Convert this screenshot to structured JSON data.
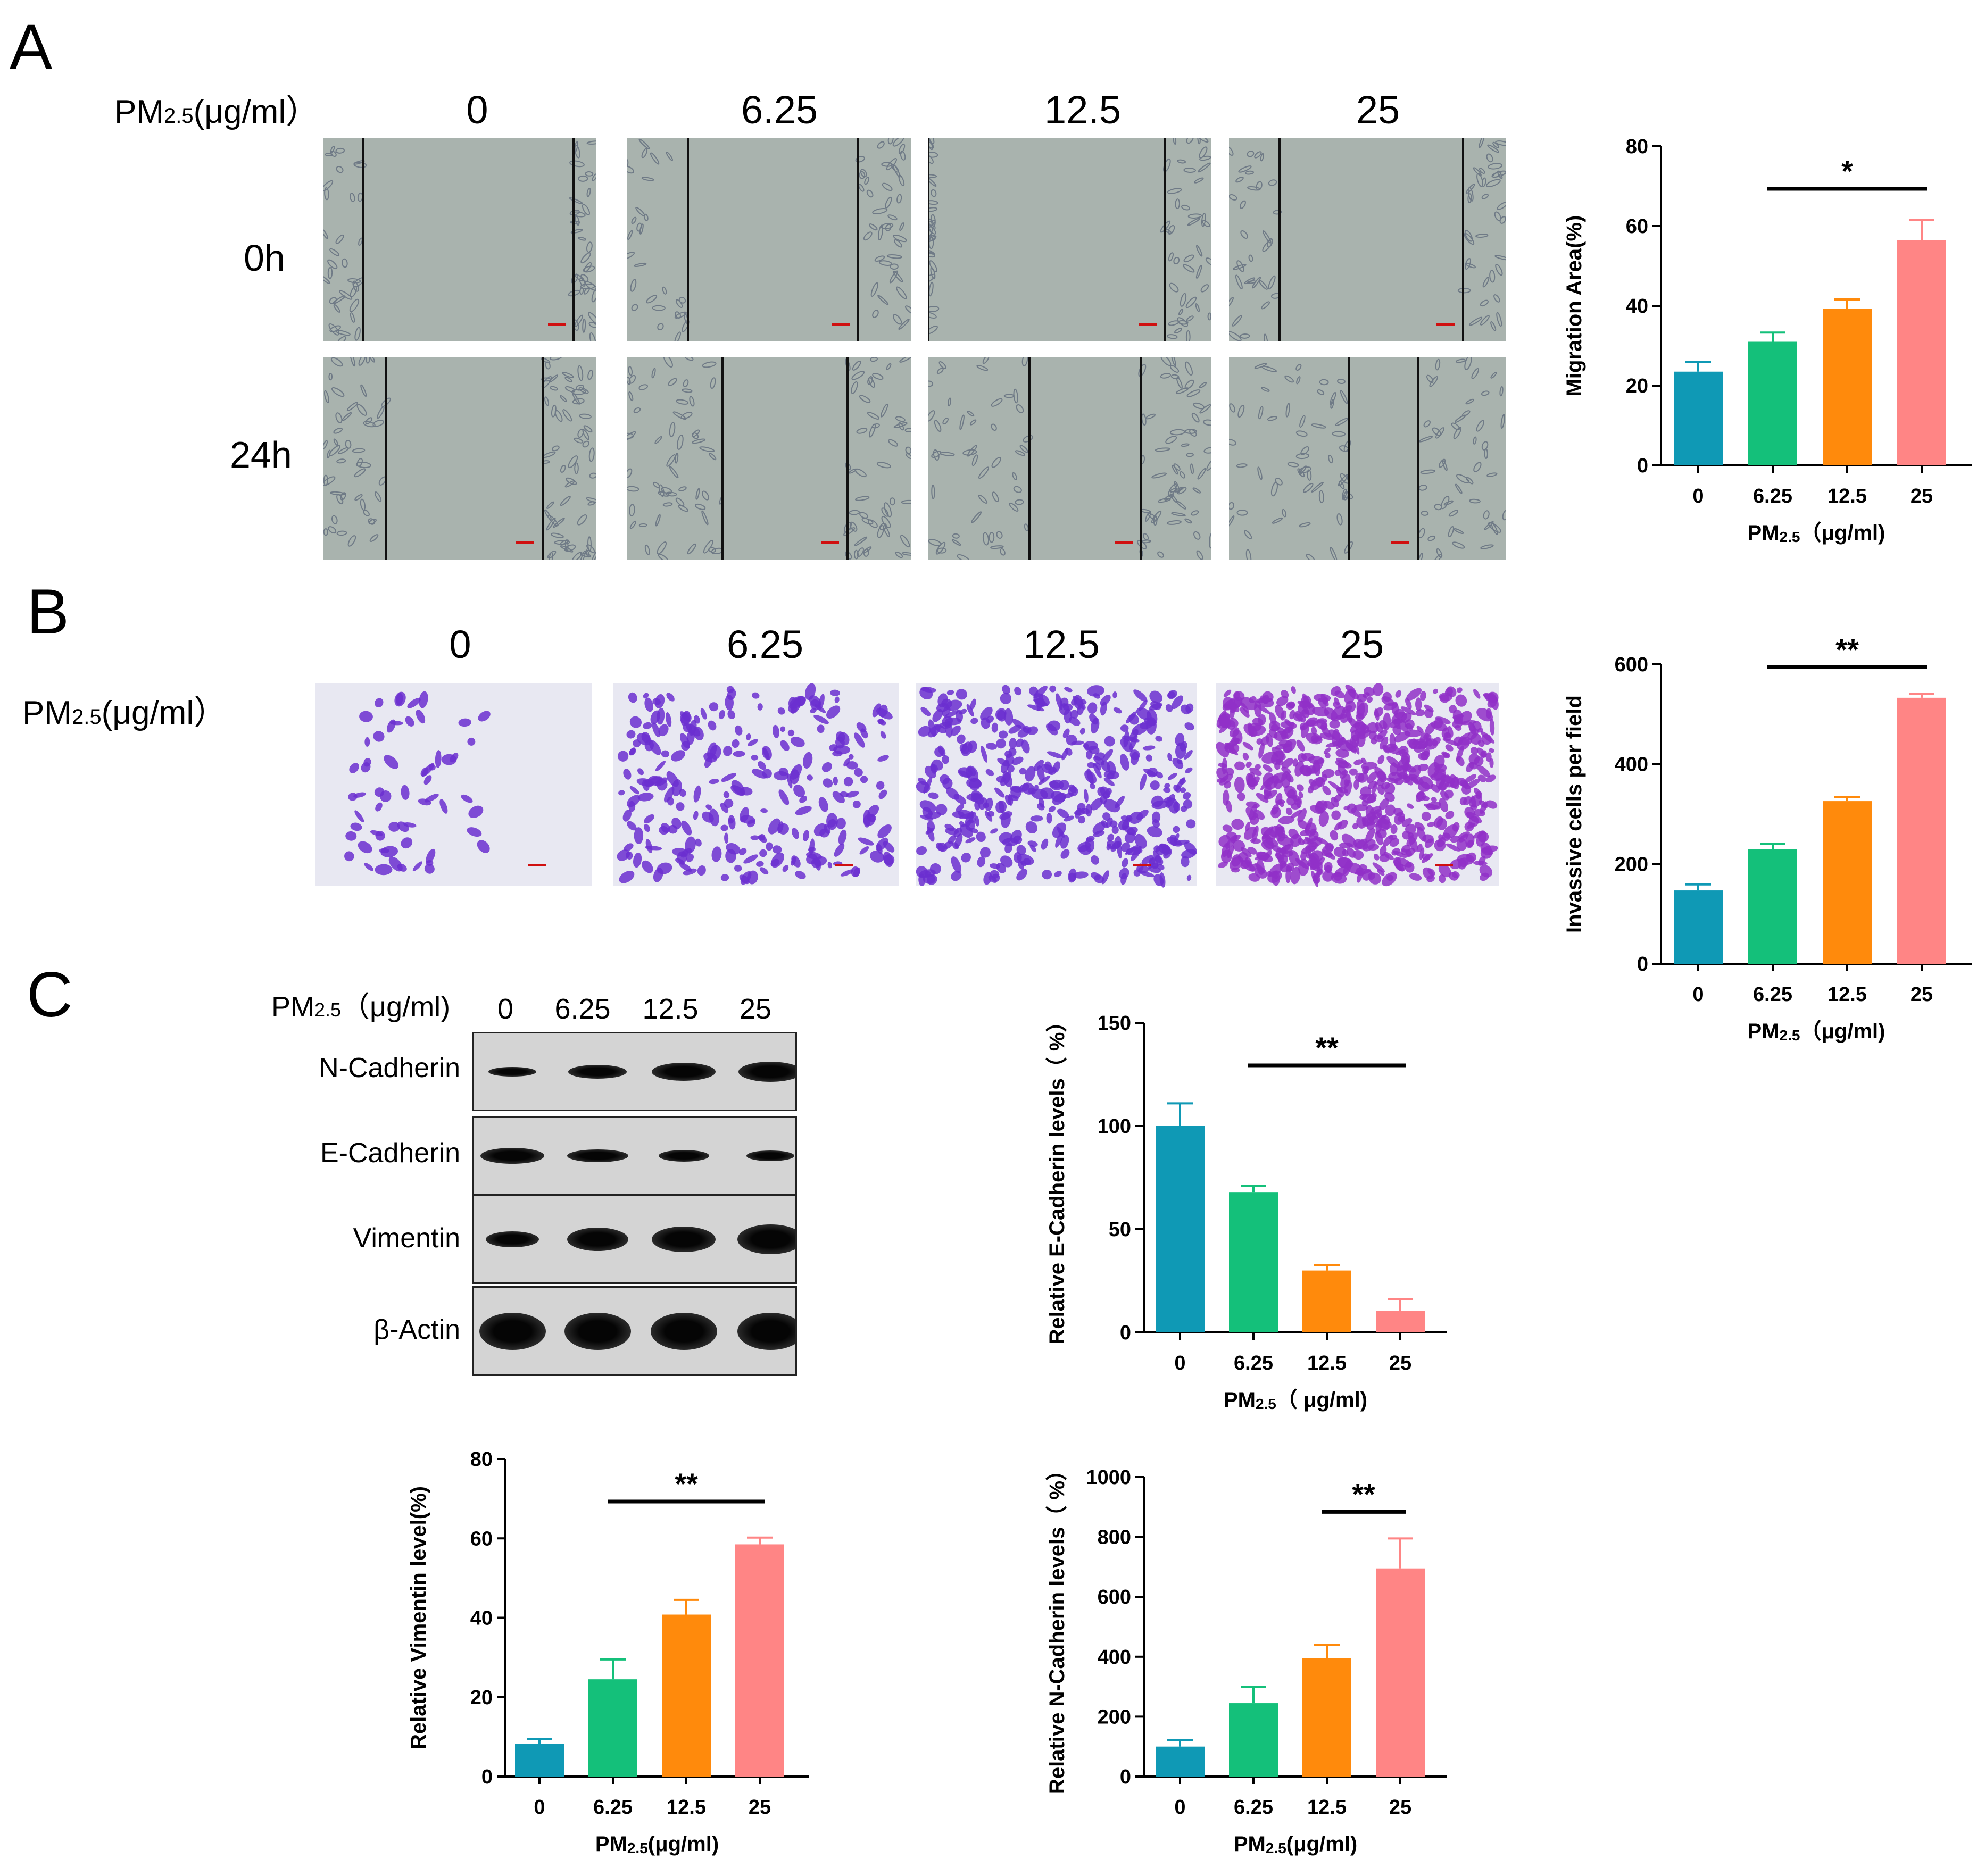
{
  "panels": {
    "a": {
      "letter": "A",
      "pm_label": "PM",
      "pm_sub": "2.5",
      "pm_unit": "(μg/ml）",
      "concentrations": [
        "0",
        "6.25",
        "12.5",
        "25"
      ],
      "times": [
        "0h",
        "24h"
      ]
    },
    "b": {
      "letter": "B",
      "pm_label": "PM",
      "pm_sub": "2.5",
      "pm_unit": "(μg/ml）",
      "concentrations": [
        "0",
        "6.25",
        "12.5",
        "25"
      ]
    },
    "c": {
      "letter": "C",
      "pm_label": "PM",
      "pm_sub": "2.5",
      "pm_unit": "（μg/ml)",
      "concentrations": [
        "0",
        "6.25",
        "12.5",
        "25"
      ],
      "blot_rows": [
        "N-Cadherin",
        "E-Cadherin",
        "Vimentin",
        "β-Actin"
      ]
    }
  },
  "colors": [
    "#0f99b5",
    "#14c07a",
    "#ff8a0c",
    "#ff8585"
  ],
  "chart_data": [
    {
      "id": "migration",
      "type": "bar",
      "categories": [
        "0",
        "6.25",
        "12.5",
        "25"
      ],
      "values": [
        23.5,
        31,
        39.3,
        56.5
      ],
      "errors": [
        2.5,
        2.3,
        2.3,
        5.0
      ],
      "ylabel": "Migration Area(%)",
      "xlabel_main": "PM",
      "xlabel_sub": "2.5",
      "xlabel_unit": "（μg/ml)",
      "ylim": [
        0,
        80
      ],
      "yticks": [
        0,
        20,
        40,
        60,
        80
      ],
      "significance": {
        "from": 1,
        "to": 3,
        "label": "*"
      }
    },
    {
      "id": "invasion",
      "type": "bar",
      "categories": [
        "0",
        "6.25",
        "12.5",
        "25"
      ],
      "values": [
        147,
        230,
        326,
        533
      ],
      "errors": [
        12,
        10,
        8,
        8
      ],
      "ylabel": "Invassive cells per field",
      "xlabel_main": "PM",
      "xlabel_sub": "2.5",
      "xlabel_unit": "（μg/ml)",
      "ylim": [
        0,
        600
      ],
      "yticks": [
        0,
        200,
        400,
        600
      ],
      "significance": {
        "from": 1,
        "to": 3,
        "label": "**"
      }
    },
    {
      "id": "ecadherin",
      "type": "bar",
      "categories": [
        "0",
        "6.25",
        "12.5",
        "25"
      ],
      "values": [
        100,
        68,
        30,
        10.5
      ],
      "errors": [
        11,
        3,
        2.5,
        5.5
      ],
      "ylabel": "Relative E-Cadherin levels（ %）",
      "xlabel_main": "PM",
      "xlabel_sub": "2.5",
      "xlabel_unit": "（ μg/ml)",
      "ylim": [
        0,
        150
      ],
      "yticks": [
        0,
        50,
        100,
        150
      ],
      "significance": {
        "from": 1,
        "to": 3,
        "label": "**"
      }
    },
    {
      "id": "vimentin",
      "type": "bar",
      "categories": [
        "0",
        "6.25",
        "12.5",
        "25"
      ],
      "values": [
        8.2,
        24.5,
        40.8,
        58.5
      ],
      "errors": [
        1.2,
        5.0,
        3.7,
        1.7
      ],
      "ylabel": "Relative Vimentin level(%)",
      "xlabel_main": "PM",
      "xlabel_sub": "2.5",
      "xlabel_unit": "(μg/ml)",
      "ylim": [
        0,
        80
      ],
      "yticks": [
        0,
        20,
        40,
        60,
        80
      ],
      "significance": {
        "from": 1,
        "to": 3,
        "label": "**"
      }
    },
    {
      "id": "ncadherin",
      "type": "bar",
      "categories": [
        "0",
        "6.25",
        "12.5",
        "25"
      ],
      "values": [
        100,
        245,
        395,
        695
      ],
      "errors": [
        22,
        55,
        45,
        100
      ],
      "ylabel": "Relative N-Cadherin levels（ %）",
      "xlabel_main": "PM",
      "xlabel_sub": "2.5",
      "xlabel_unit": "(μg/ml)",
      "ylim": [
        0,
        1000
      ],
      "yticks": [
        0,
        200,
        400,
        600,
        800,
        1000
      ],
      "significance": {
        "from": 2,
        "to": 3,
        "label": "**"
      }
    }
  ]
}
